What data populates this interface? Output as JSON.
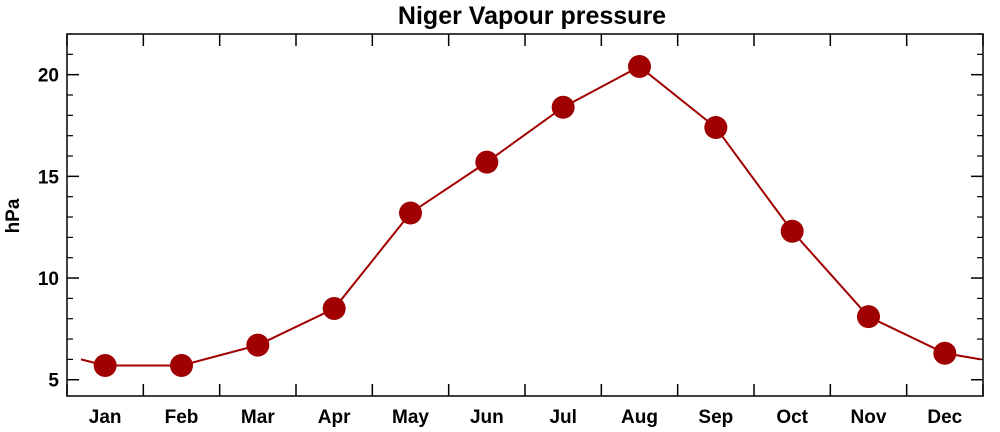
{
  "chart_data": {
    "type": "line",
    "title": "Niger Vapour pressure",
    "ylabel": "hPa",
    "xlabel": "",
    "categories": [
      "Jan",
      "Feb",
      "Mar",
      "Apr",
      "May",
      "Jun",
      "Jul",
      "Aug",
      "Sep",
      "Oct",
      "Nov",
      "Dec"
    ],
    "series": [
      {
        "values": [
          5.7,
          5.7,
          6.7,
          8.5,
          13.2,
          15.7,
          18.4,
          20.4,
          17.4,
          12.3,
          8.1,
          6.3
        ]
      }
    ],
    "ylim": [
      4.2,
      22.0
    ],
    "yticks": [
      5,
      10,
      15,
      20
    ],
    "grid": false,
    "color": "#a00000"
  }
}
